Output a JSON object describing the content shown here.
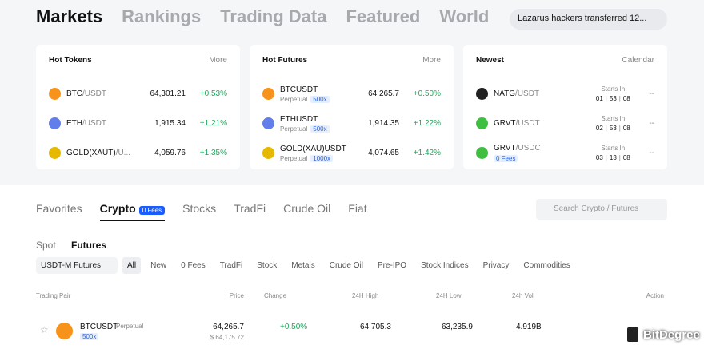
{
  "nav": {
    "tabs": [
      "Markets",
      "Rankings",
      "Trading Data",
      "Featured",
      "World"
    ],
    "news": "Lazarus hackers transferred 12..."
  },
  "hot_tokens": {
    "title": "Hot Tokens",
    "link": "More",
    "rows": [
      {
        "base": "BTC",
        "quote": "/USDT",
        "price": "64,301.21",
        "change": "+0.53%"
      },
      {
        "base": "ETH",
        "quote": "/USDT",
        "price": "1,915.34",
        "change": "+1.21%"
      },
      {
        "base": "GOLD(XAUT)",
        "quote": "/U...",
        "price": "4,059.76",
        "change": "+1.35%"
      }
    ]
  },
  "hot_futures": {
    "title": "Hot Futures",
    "link": "More",
    "rows": [
      {
        "pair": "BTCUSDT",
        "type": "Perpetual",
        "leverage": "500x",
        "price": "64,265.7",
        "change": "+0.50%"
      },
      {
        "pair": "ETHUSDT",
        "type": "Perpetual",
        "leverage": "500x",
        "price": "1,914.35",
        "change": "+1.22%"
      },
      {
        "pair": "GOLD(XAU)USDT",
        "type": "Perpetual",
        "leverage": "1000x",
        "price": "4,074.65",
        "change": "+1.42%"
      }
    ]
  },
  "newest": {
    "title": "Newest",
    "link": "Calendar",
    "rows": [
      {
        "base": "NATG",
        "quote": "/USDT",
        "starts": "Starts In",
        "timer": [
          "01",
          "53",
          "08"
        ],
        "status": "--"
      },
      {
        "base": "GRVT",
        "quote": "/USDT",
        "starts": "Starts In",
        "timer": [
          "02",
          "53",
          "08"
        ],
        "status": "--"
      },
      {
        "base": "GRVT",
        "quote": "/USDC",
        "tag": "0 Fees",
        "starts": "Starts In",
        "timer": [
          "03",
          "13",
          "08"
        ],
        "status": "--"
      }
    ]
  },
  "market_tabs": {
    "tabs": [
      "Favorites",
      "Crypto",
      "Stocks",
      "TradFi",
      "Crude Oil",
      "Fiat"
    ],
    "badge": "0 Fees",
    "search": "Search Crypto / Futures"
  },
  "subtabs": [
    "Spot",
    "Futures"
  ],
  "filters": {
    "dropdown": "USDT-M Futures",
    "items": [
      "All",
      "New",
      "0 Fees",
      "TradFi",
      "Stock",
      "Metals",
      "Crude Oil",
      "Pre-IPO",
      "Stock Indices",
      "Privacy",
      "Commodities"
    ]
  },
  "table": {
    "columns": [
      "Trading Pair",
      "Price",
      "Change",
      "24H High",
      "24H Low",
      "24h Vol",
      "Action"
    ],
    "rows": [
      {
        "pair": "BTCUSDT",
        "type": "Perpetual",
        "leverage": "500x",
        "price": "64,265.7",
        "index_price": "$ 64,175.72",
        "change": "+0.50%",
        "high": "64,705.3",
        "low": "63,235.9",
        "volume": "4.919B"
      }
    ]
  },
  "watermark": "BitDegree"
}
